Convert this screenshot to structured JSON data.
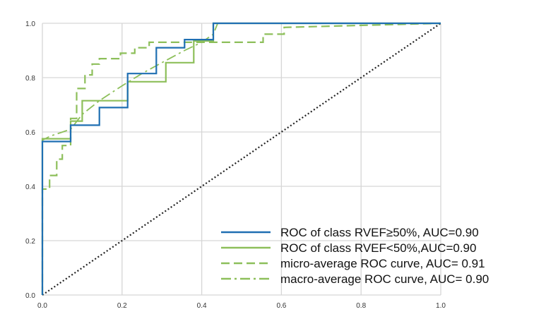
{
  "chart_data": {
    "type": "line",
    "title": "",
    "xlabel": "",
    "ylabel": "",
    "xlim": [
      0.0,
      1.0
    ],
    "ylim": [
      0.0,
      1.0
    ],
    "grid": true,
    "legend_position": "bottom-right",
    "x_ticks": [
      "0.0",
      "0.2",
      "0.4",
      "0.6",
      "0.8",
      "1.0"
    ],
    "y_ticks": [
      "0.0",
      "0.2",
      "0.4",
      "0.6",
      "0.8",
      "1.0"
    ],
    "series": [
      {
        "name": "ROC of class RVEF≥50%, AUC=0.90",
        "color": "#1f6fb2",
        "style": "solid",
        "x": [
          0,
          0,
          0.071,
          0.071,
          0.143,
          0.143,
          0.214,
          0.214,
          0.286,
          0.286,
          0.357,
          0.357,
          0.429,
          0.429,
          1.0
        ],
        "y": [
          0,
          0.565,
          0.565,
          0.625,
          0.625,
          0.69,
          0.69,
          0.815,
          0.815,
          0.91,
          0.91,
          0.94,
          0.94,
          1.0,
          1.0
        ]
      },
      {
        "name": "ROC of class RVEF<50%,AUC=0.90",
        "color": "#8dbf5a",
        "style": "solid",
        "x": [
          0,
          0,
          0.071,
          0.071,
          0.1,
          0.1,
          0.214,
          0.214,
          0.31,
          0.31,
          0.38,
          0.38,
          0.429,
          0.429,
          1.0
        ],
        "y": [
          0,
          0.575,
          0.575,
          0.64,
          0.64,
          0.715,
          0.715,
          0.785,
          0.785,
          0.855,
          0.855,
          0.935,
          0.935,
          1.0,
          1.0
        ]
      },
      {
        "name": "micro-average ROC curve, AUC= 0.91",
        "color": "#8dbf5a",
        "style": "dashed",
        "x": [
          0,
          0,
          0.018,
          0.018,
          0.036,
          0.036,
          0.05,
          0.05,
          0.071,
          0.071,
          0.086,
          0.086,
          0.107,
          0.107,
          0.125,
          0.125,
          0.143,
          0.143,
          0.196,
          0.196,
          0.232,
          0.232,
          0.268,
          0.268,
          0.554,
          0.554,
          0.607,
          0.607,
          1.0
        ],
        "y": [
          0,
          0.39,
          0.39,
          0.44,
          0.44,
          0.5,
          0.5,
          0.55,
          0.55,
          0.65,
          0.65,
          0.76,
          0.76,
          0.81,
          0.81,
          0.85,
          0.85,
          0.87,
          0.87,
          0.89,
          0.89,
          0.91,
          0.91,
          0.93,
          0.93,
          0.96,
          0.96,
          0.985,
          1.0
        ]
      },
      {
        "name": "macro-average ROC curve, AUC= 0.90",
        "color": "#8dbf5a",
        "style": "dashdot",
        "x": [
          0,
          0,
          0.02,
          0.071,
          0.1,
          0.143,
          0.2,
          0.25,
          0.3,
          0.357,
          0.4,
          0.429,
          0.44,
          1.0
        ],
        "y": [
          0,
          0.57,
          0.585,
          0.61,
          0.665,
          0.715,
          0.77,
          0.815,
          0.855,
          0.9,
          0.93,
          0.96,
          1.0,
          1.0
        ]
      },
      {
        "name": "",
        "color": "#222222",
        "style": "dotted",
        "x": [
          0,
          1
        ],
        "y": [
          0,
          1
        ]
      }
    ]
  }
}
